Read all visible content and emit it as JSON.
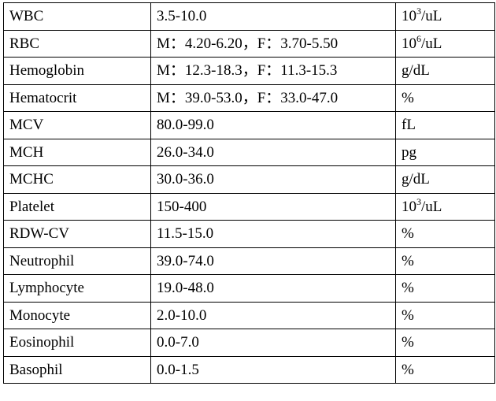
{
  "table": {
    "rows": [
      {
        "name": "WBC",
        "range": "3.5-10.0",
        "unit": {
          "pre": "10",
          "sup": "3",
          "post": "/uL"
        }
      },
      {
        "name": "RBC",
        "range": "M：4.20-6.20，F：3.70-5.50",
        "unit": {
          "pre": "10",
          "sup": "6",
          "post": "/uL"
        }
      },
      {
        "name": "Hemoglobin",
        "range": "M：12.3-18.3，F：11.3-15.3",
        "unit": {
          "pre": "g/dL",
          "sup": "",
          "post": ""
        }
      },
      {
        "name": "Hematocrit",
        "range": "M：39.0-53.0，F：33.0-47.0",
        "unit": {
          "pre": "%",
          "sup": "",
          "post": ""
        }
      },
      {
        "name": "MCV",
        "range": "80.0-99.0",
        "unit": {
          "pre": "fL",
          "sup": "",
          "post": ""
        }
      },
      {
        "name": "MCH",
        "range": "26.0-34.0",
        "unit": {
          "pre": "pg",
          "sup": "",
          "post": ""
        }
      },
      {
        "name": "MCHC",
        "range": "30.0-36.0",
        "unit": {
          "pre": "g/dL",
          "sup": "",
          "post": ""
        }
      },
      {
        "name": "Platelet",
        "range": "150-400",
        "unit": {
          "pre": "10",
          "sup": "3",
          "post": "/uL"
        }
      },
      {
        "name": "RDW-CV",
        "range": "11.5-15.0",
        "unit": {
          "pre": "%",
          "sup": "",
          "post": ""
        }
      },
      {
        "name": "Neutrophil",
        "range": "39.0-74.0",
        "unit": {
          "pre": "%",
          "sup": "",
          "post": ""
        }
      },
      {
        "name": "Lymphocyte",
        "range": "19.0-48.0",
        "unit": {
          "pre": "%",
          "sup": "",
          "post": ""
        }
      },
      {
        "name": "Monocyte",
        "range": "2.0-10.0",
        "unit": {
          "pre": "%",
          "sup": "",
          "post": ""
        }
      },
      {
        "name": "Eosinophil",
        "range": "0.0-7.0",
        "unit": {
          "pre": "%",
          "sup": "",
          "post": ""
        }
      },
      {
        "name": "Basophil",
        "range": "0.0-1.5",
        "unit": {
          "pre": "%",
          "sup": "",
          "post": ""
        }
      }
    ]
  }
}
